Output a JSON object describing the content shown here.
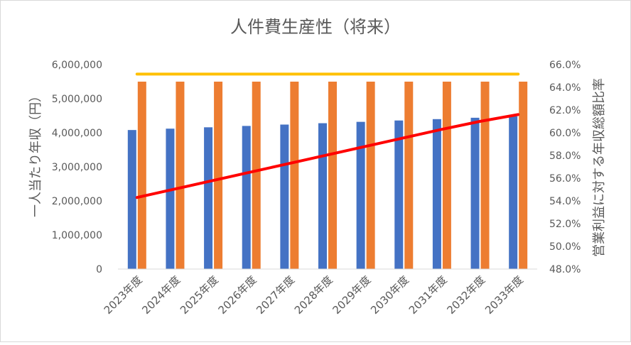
{
  "chart_data": {
    "type": "bar",
    "title": "人件費生産性（将来）",
    "categories": [
      "2023年度",
      "2024年度",
      "2025年度",
      "2026年度",
      "2027年度",
      "2028年度",
      "2029年度",
      "2030年度",
      "2031年度",
      "2032年度",
      "2033年度"
    ],
    "y_left": {
      "label": "一人当たり年収（円）",
      "min": 0,
      "max": 6000000,
      "step": 1000000,
      "tick_labels": [
        "0",
        "1,000,000",
        "2,000,000",
        "3,000,000",
        "4,000,000",
        "5,000,000",
        "6,000,000"
      ]
    },
    "y_right": {
      "label": "営業利益に対する年収総額比率",
      "min": 48.0,
      "max": 66.0,
      "step": 2.0,
      "tick_labels": [
        "48.0%",
        "50.0%",
        "52.0%",
        "54.0%",
        "56.0%",
        "58.0%",
        "60.0%",
        "62.0%",
        "64.0%",
        "66.0%"
      ]
    },
    "series": [
      {
        "type": "bar",
        "axis": "left",
        "color": "#4472C4",
        "values": [
          4080000,
          4120000,
          4160000,
          4200000,
          4240000,
          4280000,
          4320000,
          4360000,
          4400000,
          4440000,
          4480000
        ]
      },
      {
        "type": "bar",
        "axis": "left",
        "color": "#ED7D31",
        "values": [
          5500000,
          5500000,
          5500000,
          5500000,
          5500000,
          5500000,
          5500000,
          5500000,
          5500000,
          5500000,
          5500000
        ]
      },
      {
        "type": "line",
        "axis": "right",
        "color": "#FF0000",
        "values": [
          54.3,
          55.05,
          55.8,
          56.55,
          57.3,
          58.05,
          58.8,
          59.55,
          60.3,
          61.0,
          61.6
        ]
      },
      {
        "type": "line",
        "axis": "left",
        "color": "#FFC000",
        "values": [
          5720000,
          5720000,
          5720000,
          5720000,
          5720000,
          5720000,
          5720000,
          5720000,
          5720000,
          5720000,
          5720000
        ]
      }
    ],
    "grid": false,
    "legend": "none"
  }
}
